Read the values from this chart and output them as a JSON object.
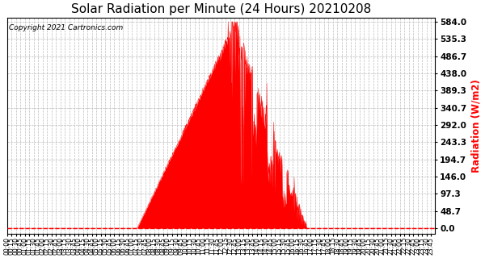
{
  "title": "Solar Radiation per Minute (24 Hours) 20210208",
  "ylabel": "Radiation (W/m2)",
  "copyright_text": "Copyright 2021 Cartronics.com",
  "ylabel_color": "red",
  "title_fontsize": 11,
  "ymax": 584.0,
  "yticks": [
    0.0,
    48.7,
    97.3,
    146.0,
    194.7,
    243.3,
    292.0,
    340.7,
    389.3,
    438.0,
    486.7,
    535.3,
    584.0
  ],
  "fill_color": "red",
  "line_color": "red",
  "background_color": "white",
  "grid_color": "#bbbbbb",
  "dashed_line_color": "red",
  "total_minutes": 1440,
  "sunrise_minute": 437,
  "sunset_minute": 1008,
  "peak_minute": 770,
  "peak_value": 584.0
}
